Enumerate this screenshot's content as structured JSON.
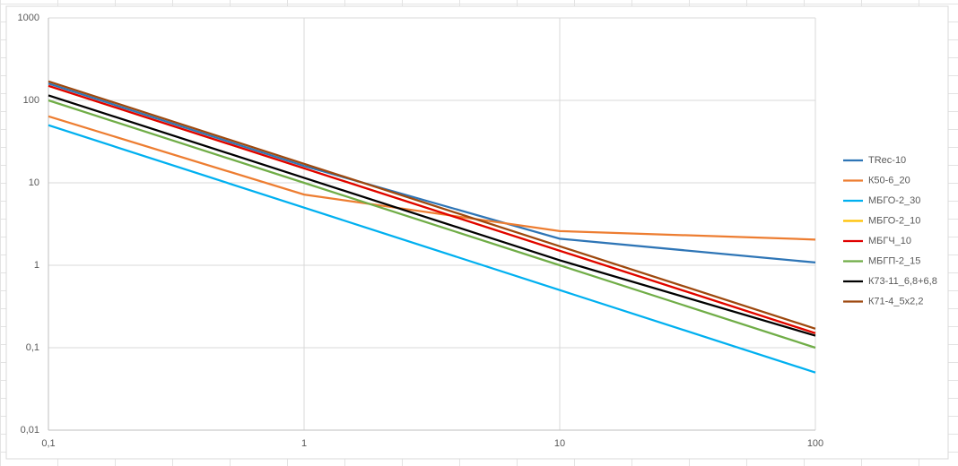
{
  "chart_data": {
    "type": "line",
    "log_x": true,
    "log_y": true,
    "grid": true,
    "legend": "right",
    "x": [
      0.1,
      1,
      10,
      100
    ],
    "xlim": [
      0.1,
      100
    ],
    "xticks": [
      {
        "value": 0.1,
        "label": "0,1"
      },
      1,
      10,
      100
    ],
    "ylim": [
      0.01,
      1000
    ],
    "yticks": [
      {
        "value": 0.01,
        "label": "0,01"
      },
      {
        "value": 0.1,
        "label": "0,1"
      },
      1,
      10,
      100,
      1000
    ],
    "series": [
      {
        "name": "TRec-10",
        "color": "#2e75b6",
        "values": [
          160,
          16,
          2.1,
          1.08
        ]
      },
      {
        "name": "К50-6_20",
        "color": "#ed7d31",
        "values": [
          64,
          7.2,
          2.6,
          2.05
        ]
      },
      {
        "name": "МБГО-2_30",
        "color": "#00b0f0",
        "values": [
          50,
          5,
          0.5,
          0.05
        ]
      },
      {
        "name": "МБГО-2_10",
        "color": "#ffc000",
        "values": [
          150,
          15,
          1.5,
          0.15
        ]
      },
      {
        "name": "МБГЧ_10",
        "color": "#e00000",
        "values": [
          150,
          15,
          1.5,
          0.15
        ]
      },
      {
        "name": "МБГП-2_15",
        "color": "#70ad47",
        "values": [
          100,
          10,
          1,
          0.1
        ]
      },
      {
        "name": "К73-11_6,8+6,8",
        "color": "#000000",
        "values": [
          115,
          11.5,
          1.15,
          0.14
        ]
      },
      {
        "name": "К71-4_5х2,2",
        "color": "#9e480e",
        "values": [
          170,
          17,
          1.7,
          0.17
        ]
      }
    ]
  }
}
